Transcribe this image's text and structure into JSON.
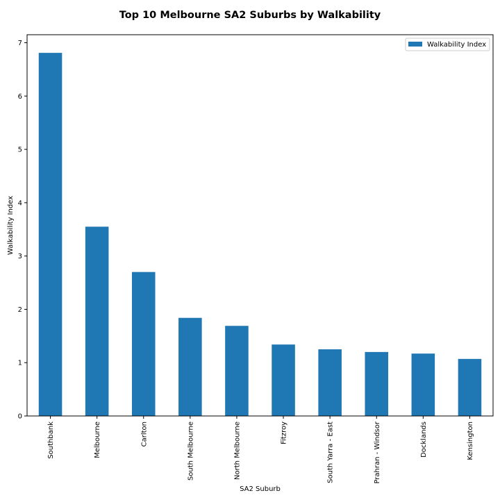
{
  "chart_data": {
    "type": "bar",
    "title": "Top 10 Melbourne SA2 Suburbs by Walkability",
    "xlabel": "SA2 Suburb",
    "ylabel": "Walkability Index",
    "categories": [
      "Southbank",
      "Melbourne",
      "Carlton",
      "South Melbourne",
      "North Melbourne",
      "Fitzroy",
      "South Yarra - East",
      "Prahran - Windsor",
      "Docklands",
      "Kensington"
    ],
    "series": [
      {
        "name": "Walkability Index",
        "color": "#1f77b4",
        "values": [
          6.81,
          3.55,
          2.7,
          1.84,
          1.69,
          1.34,
          1.25,
          1.2,
          1.17,
          1.07
        ]
      }
    ],
    "ylim": [
      0,
      7.15
    ],
    "yticks": [
      0,
      1,
      2,
      3,
      4,
      5,
      6,
      7
    ],
    "grid": false,
    "legend_position": "top-right"
  }
}
